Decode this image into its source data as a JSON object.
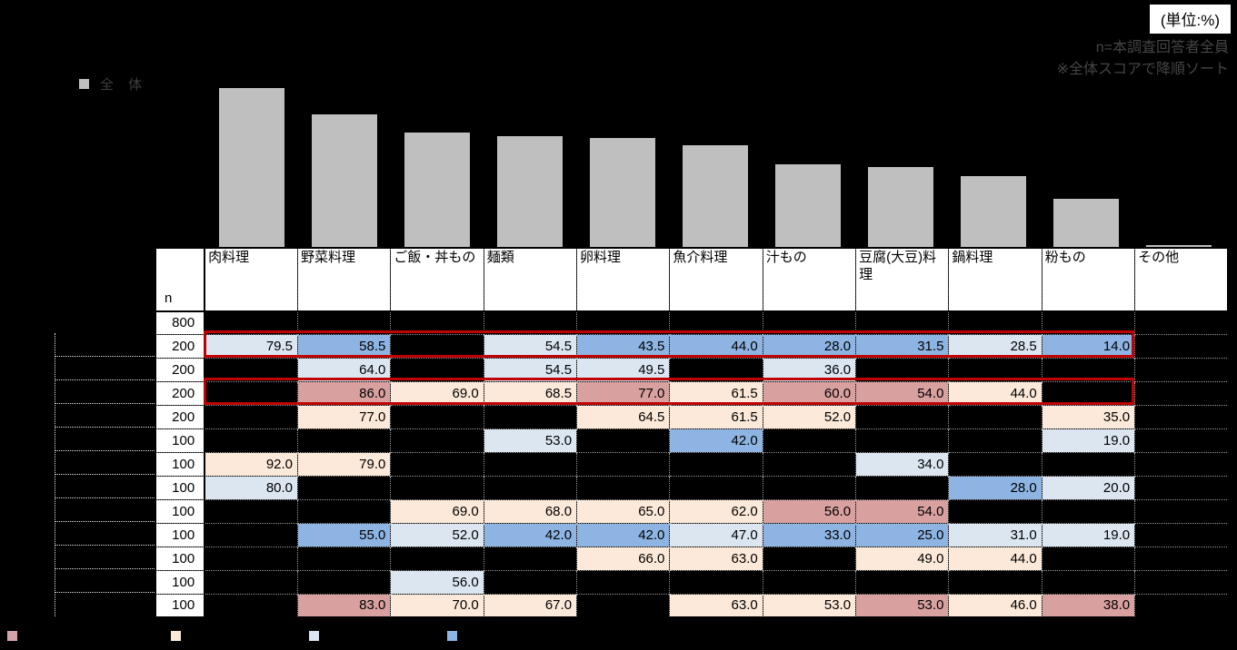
{
  "annotations": {
    "unit_label": "(単位:%)",
    "note1": "n=本調査回答者全員",
    "note2": "※全体スコアで降順ソート"
  },
  "chart_legend": {
    "label": "全 体",
    "swatch_color": "#BFBFBF"
  },
  "chart_data": {
    "type": "bar",
    "title": "",
    "xlabel": "",
    "ylabel": "",
    "unit": "%",
    "ylim": [
      0,
      100
    ],
    "grid": false,
    "legend_position": "top-left",
    "categories": [
      "肉料理",
      "野菜料理",
      "ご飯・丼もの",
      "麺類",
      "卵料理",
      "魚介料理",
      "汁もの",
      "豆腐(大豆)料理",
      "鍋料理",
      "粉もの",
      "その他"
    ],
    "series": [
      {
        "name": "全体",
        "values": [
          85.5,
          71.4,
          61.5,
          59.3,
          58.6,
          54.8,
          44.4,
          42.9,
          38.0,
          26.0,
          1.2
        ]
      }
    ],
    "bar_color": "#BFBFBF"
  },
  "table": {
    "n_column_header": "n",
    "columns": [
      "肉料理",
      "野菜料理",
      "ご飯・丼もの",
      "麺類",
      "卵料理",
      "魚介料理",
      "汁もの",
      "豆腐(大豆)料理",
      "鍋料理",
      "粉もの",
      "その他"
    ],
    "rows": [
      {
        "n": "800",
        "red_box": false,
        "cells": [
          null,
          null,
          null,
          null,
          null,
          null,
          null,
          null,
          null,
          null,
          null
        ]
      },
      {
        "n": "200",
        "red_box": true,
        "cells": [
          {
            "v": "79.5",
            "c": "lb"
          },
          {
            "v": "58.5",
            "c": "mb"
          },
          null,
          {
            "v": "54.5",
            "c": "lb"
          },
          {
            "v": "43.5",
            "c": "mb"
          },
          {
            "v": "44.0",
            "c": "mb"
          },
          {
            "v": "28.0",
            "c": "mb"
          },
          {
            "v": "31.5",
            "c": "mb"
          },
          {
            "v": "28.5",
            "c": "lb"
          },
          {
            "v": "14.0",
            "c": "mb"
          },
          null
        ]
      },
      {
        "n": "200",
        "red_box": false,
        "cells": [
          null,
          {
            "v": "64.0",
            "c": "lb"
          },
          null,
          {
            "v": "54.5",
            "c": "lb"
          },
          {
            "v": "49.5",
            "c": "lb"
          },
          null,
          {
            "v": "36.0",
            "c": "lb"
          },
          null,
          null,
          null,
          null
        ]
      },
      {
        "n": "200",
        "red_box": true,
        "cells": [
          null,
          {
            "v": "86.0",
            "c": "pk"
          },
          {
            "v": "69.0",
            "c": "pc"
          },
          {
            "v": "68.5",
            "c": "pc"
          },
          {
            "v": "77.0",
            "c": "pk"
          },
          {
            "v": "61.5",
            "c": "pc"
          },
          {
            "v": "60.0",
            "c": "pk"
          },
          {
            "v": "54.0",
            "c": "pk"
          },
          {
            "v": "44.0",
            "c": "pc"
          },
          null,
          null
        ]
      },
      {
        "n": "200",
        "red_box": false,
        "cells": [
          null,
          {
            "v": "77.0",
            "c": "pc"
          },
          null,
          null,
          {
            "v": "64.5",
            "c": "pc"
          },
          {
            "v": "61.5",
            "c": "pc"
          },
          {
            "v": "52.0",
            "c": "pc"
          },
          null,
          null,
          {
            "v": "35.0",
            "c": "pc"
          },
          null
        ]
      },
      {
        "n": "100",
        "red_box": false,
        "cells": [
          null,
          null,
          null,
          {
            "v": "53.0",
            "c": "lb"
          },
          null,
          {
            "v": "42.0",
            "c": "mb"
          },
          null,
          null,
          null,
          {
            "v": "19.0",
            "c": "lb"
          },
          null
        ]
      },
      {
        "n": "100",
        "red_box": false,
        "cells": [
          {
            "v": "92.0",
            "c": "pc"
          },
          {
            "v": "79.0",
            "c": "pc"
          },
          null,
          null,
          null,
          null,
          null,
          {
            "v": "34.0",
            "c": "lb"
          },
          null,
          null,
          null
        ]
      },
      {
        "n": "100",
        "red_box": false,
        "cells": [
          {
            "v": "80.0",
            "c": "lb"
          },
          null,
          null,
          null,
          null,
          null,
          null,
          null,
          {
            "v": "28.0",
            "c": "mb"
          },
          {
            "v": "20.0",
            "c": "lb"
          },
          null
        ]
      },
      {
        "n": "100",
        "red_box": false,
        "cells": [
          null,
          null,
          {
            "v": "69.0",
            "c": "pc"
          },
          {
            "v": "68.0",
            "c": "pc"
          },
          {
            "v": "65.0",
            "c": "pc"
          },
          {
            "v": "62.0",
            "c": "pc"
          },
          {
            "v": "56.0",
            "c": "pk"
          },
          {
            "v": "54.0",
            "c": "pk"
          },
          null,
          null,
          null
        ]
      },
      {
        "n": "100",
        "red_box": false,
        "cells": [
          null,
          {
            "v": "55.0",
            "c": "mb"
          },
          {
            "v": "52.0",
            "c": "lb"
          },
          {
            "v": "42.0",
            "c": "mb"
          },
          {
            "v": "42.0",
            "c": "mb"
          },
          {
            "v": "47.0",
            "c": "lb"
          },
          {
            "v": "33.0",
            "c": "mb"
          },
          {
            "v": "25.0",
            "c": "mb"
          },
          {
            "v": "31.0",
            "c": "lb"
          },
          {
            "v": "19.0",
            "c": "lb"
          },
          null
        ]
      },
      {
        "n": "100",
        "red_box": false,
        "cells": [
          null,
          null,
          null,
          null,
          {
            "v": "66.0",
            "c": "pc"
          },
          {
            "v": "63.0",
            "c": "pc"
          },
          null,
          {
            "v": "49.0",
            "c": "pc"
          },
          {
            "v": "44.0",
            "c": "pc"
          },
          null,
          null
        ]
      },
      {
        "n": "100",
        "red_box": false,
        "cells": [
          null,
          null,
          {
            "v": "56.0",
            "c": "lb"
          },
          null,
          null,
          null,
          null,
          null,
          null,
          null,
          null
        ]
      },
      {
        "n": "100",
        "red_box": false,
        "cells": [
          null,
          {
            "v": "83.0",
            "c": "pk"
          },
          {
            "v": "70.0",
            "c": "pc"
          },
          {
            "v": "67.0",
            "c": "pc"
          },
          null,
          {
            "v": "63.0",
            "c": "pc"
          },
          {
            "v": "53.0",
            "c": "pc"
          },
          {
            "v": "53.0",
            "c": "pk"
          },
          {
            "v": "46.0",
            "c": "pc"
          },
          {
            "v": "38.0",
            "c": "pk"
          },
          null
        ]
      }
    ]
  },
  "cell_colors": {
    "lb": "#DCE6F1",
    "mb": "#8DB4E2",
    "pc": "#FDE9D9",
    "pk": "#D9A0A0",
    "red_box_border": "#C00000"
  },
  "bottom_legend": {
    "swatches": [
      {
        "name": "pink-swatch",
        "color": "#D4A3A9"
      },
      {
        "name": "peach-swatch",
        "color": "#FDE9D9"
      },
      {
        "name": "light-blue-swatch",
        "color": "#DCE6F1"
      },
      {
        "name": "medium-blue-swatch",
        "color": "#8DB4E2"
      }
    ]
  }
}
